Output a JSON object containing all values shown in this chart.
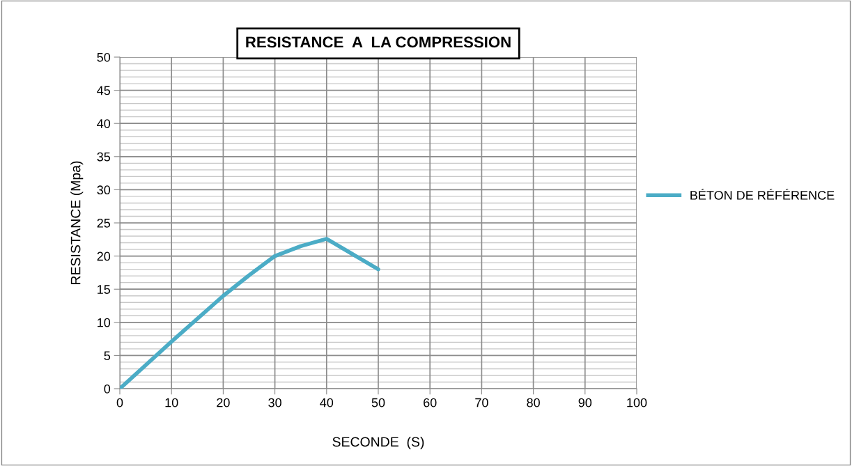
{
  "chart_data": {
    "type": "line",
    "title": "RESISTANCE  A  LA COMPRESSION",
    "xlabel": "SECONDE  (S)",
    "ylabel": "RESISTANCE (Mpa)",
    "x": [
      0,
      10,
      20,
      25,
      30,
      35,
      40,
      45,
      50
    ],
    "series": [
      {
        "name": "BÉTON DE RÉFÉRENCE",
        "color": "#4bacc6",
        "values": [
          0,
          7.1,
          14.0,
          17.1,
          20.0,
          21.5,
          22.6,
          20.3,
          18.0
        ]
      }
    ],
    "xlim": [
      0,
      100
    ],
    "xticks": [
      0,
      10,
      20,
      30,
      40,
      50,
      60,
      70,
      80,
      90,
      100
    ],
    "ylim": [
      0,
      50
    ],
    "yticks": [
      0,
      5,
      10,
      15,
      20,
      25,
      30,
      35,
      40,
      45,
      50
    ],
    "grid": true,
    "legend": "right",
    "marker": "none",
    "line_style": "solid"
  }
}
